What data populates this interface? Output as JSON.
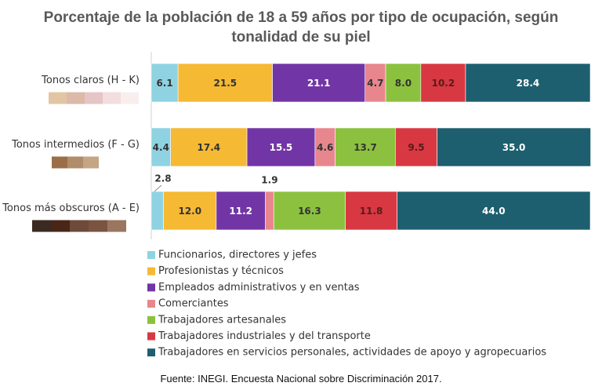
{
  "chart_data": {
    "type": "bar",
    "orientation": "horizontal",
    "stacked": true,
    "title_lines": [
      "Porcentaje de la población de 18 a 59 años por tipo de ocupación, según",
      "tonalidad de su piel"
    ],
    "categories": [
      "Tonos claros (H - K)",
      "Tonos intermedios (F - G)",
      "Tonos más obscuros (A - E)"
    ],
    "series": [
      {
        "name": "Funcionarios, directores y jefes",
        "color": "#8fd3e3",
        "values": [
          6.1,
          4.4,
          2.8
        ]
      },
      {
        "name": "Profesionistas y técnicos",
        "color": "#f5b934",
        "values": [
          21.5,
          17.4,
          12.0
        ]
      },
      {
        "name": "Empleados administrativos y en ventas",
        "color": "#7235a6",
        "values": [
          21.1,
          15.5,
          11.2
        ]
      },
      {
        "name": "Comerciantes",
        "color": "#e8868e",
        "values": [
          4.7,
          4.6,
          1.9
        ]
      },
      {
        "name": "Trabajadores artesanales",
        "color": "#8cc13f",
        "values": [
          8.0,
          13.7,
          16.3
        ]
      },
      {
        "name": "Trabajadores industriales y del transporte",
        "color": "#d83842",
        "values": [
          10.2,
          9.5,
          11.8
        ]
      },
      {
        "name": "Trabajadores en servicios personales, actividades de apoyo y agropecuarios",
        "color": "#1d5f6f",
        "values": [
          28.4,
          35.0,
          44.0
        ]
      }
    ],
    "skin_swatches": [
      [
        "#e2c6a3",
        "#dcb9a8",
        "#e5c5c5",
        "#f2dede",
        "#f8eeee"
      ],
      [
        "#9b6e47",
        "#b08c6a",
        "#c4a686"
      ],
      [
        "#3a2a22",
        "#4a2618",
        "#6d4a3a",
        "#7a5440",
        "#9a7660"
      ]
    ],
    "xlim": [
      0,
      100
    ],
    "grid": false,
    "legend_position": "bottom"
  },
  "source": "Fuente: INEGI. Encuesta Nacional sobre Discriminación 2017."
}
